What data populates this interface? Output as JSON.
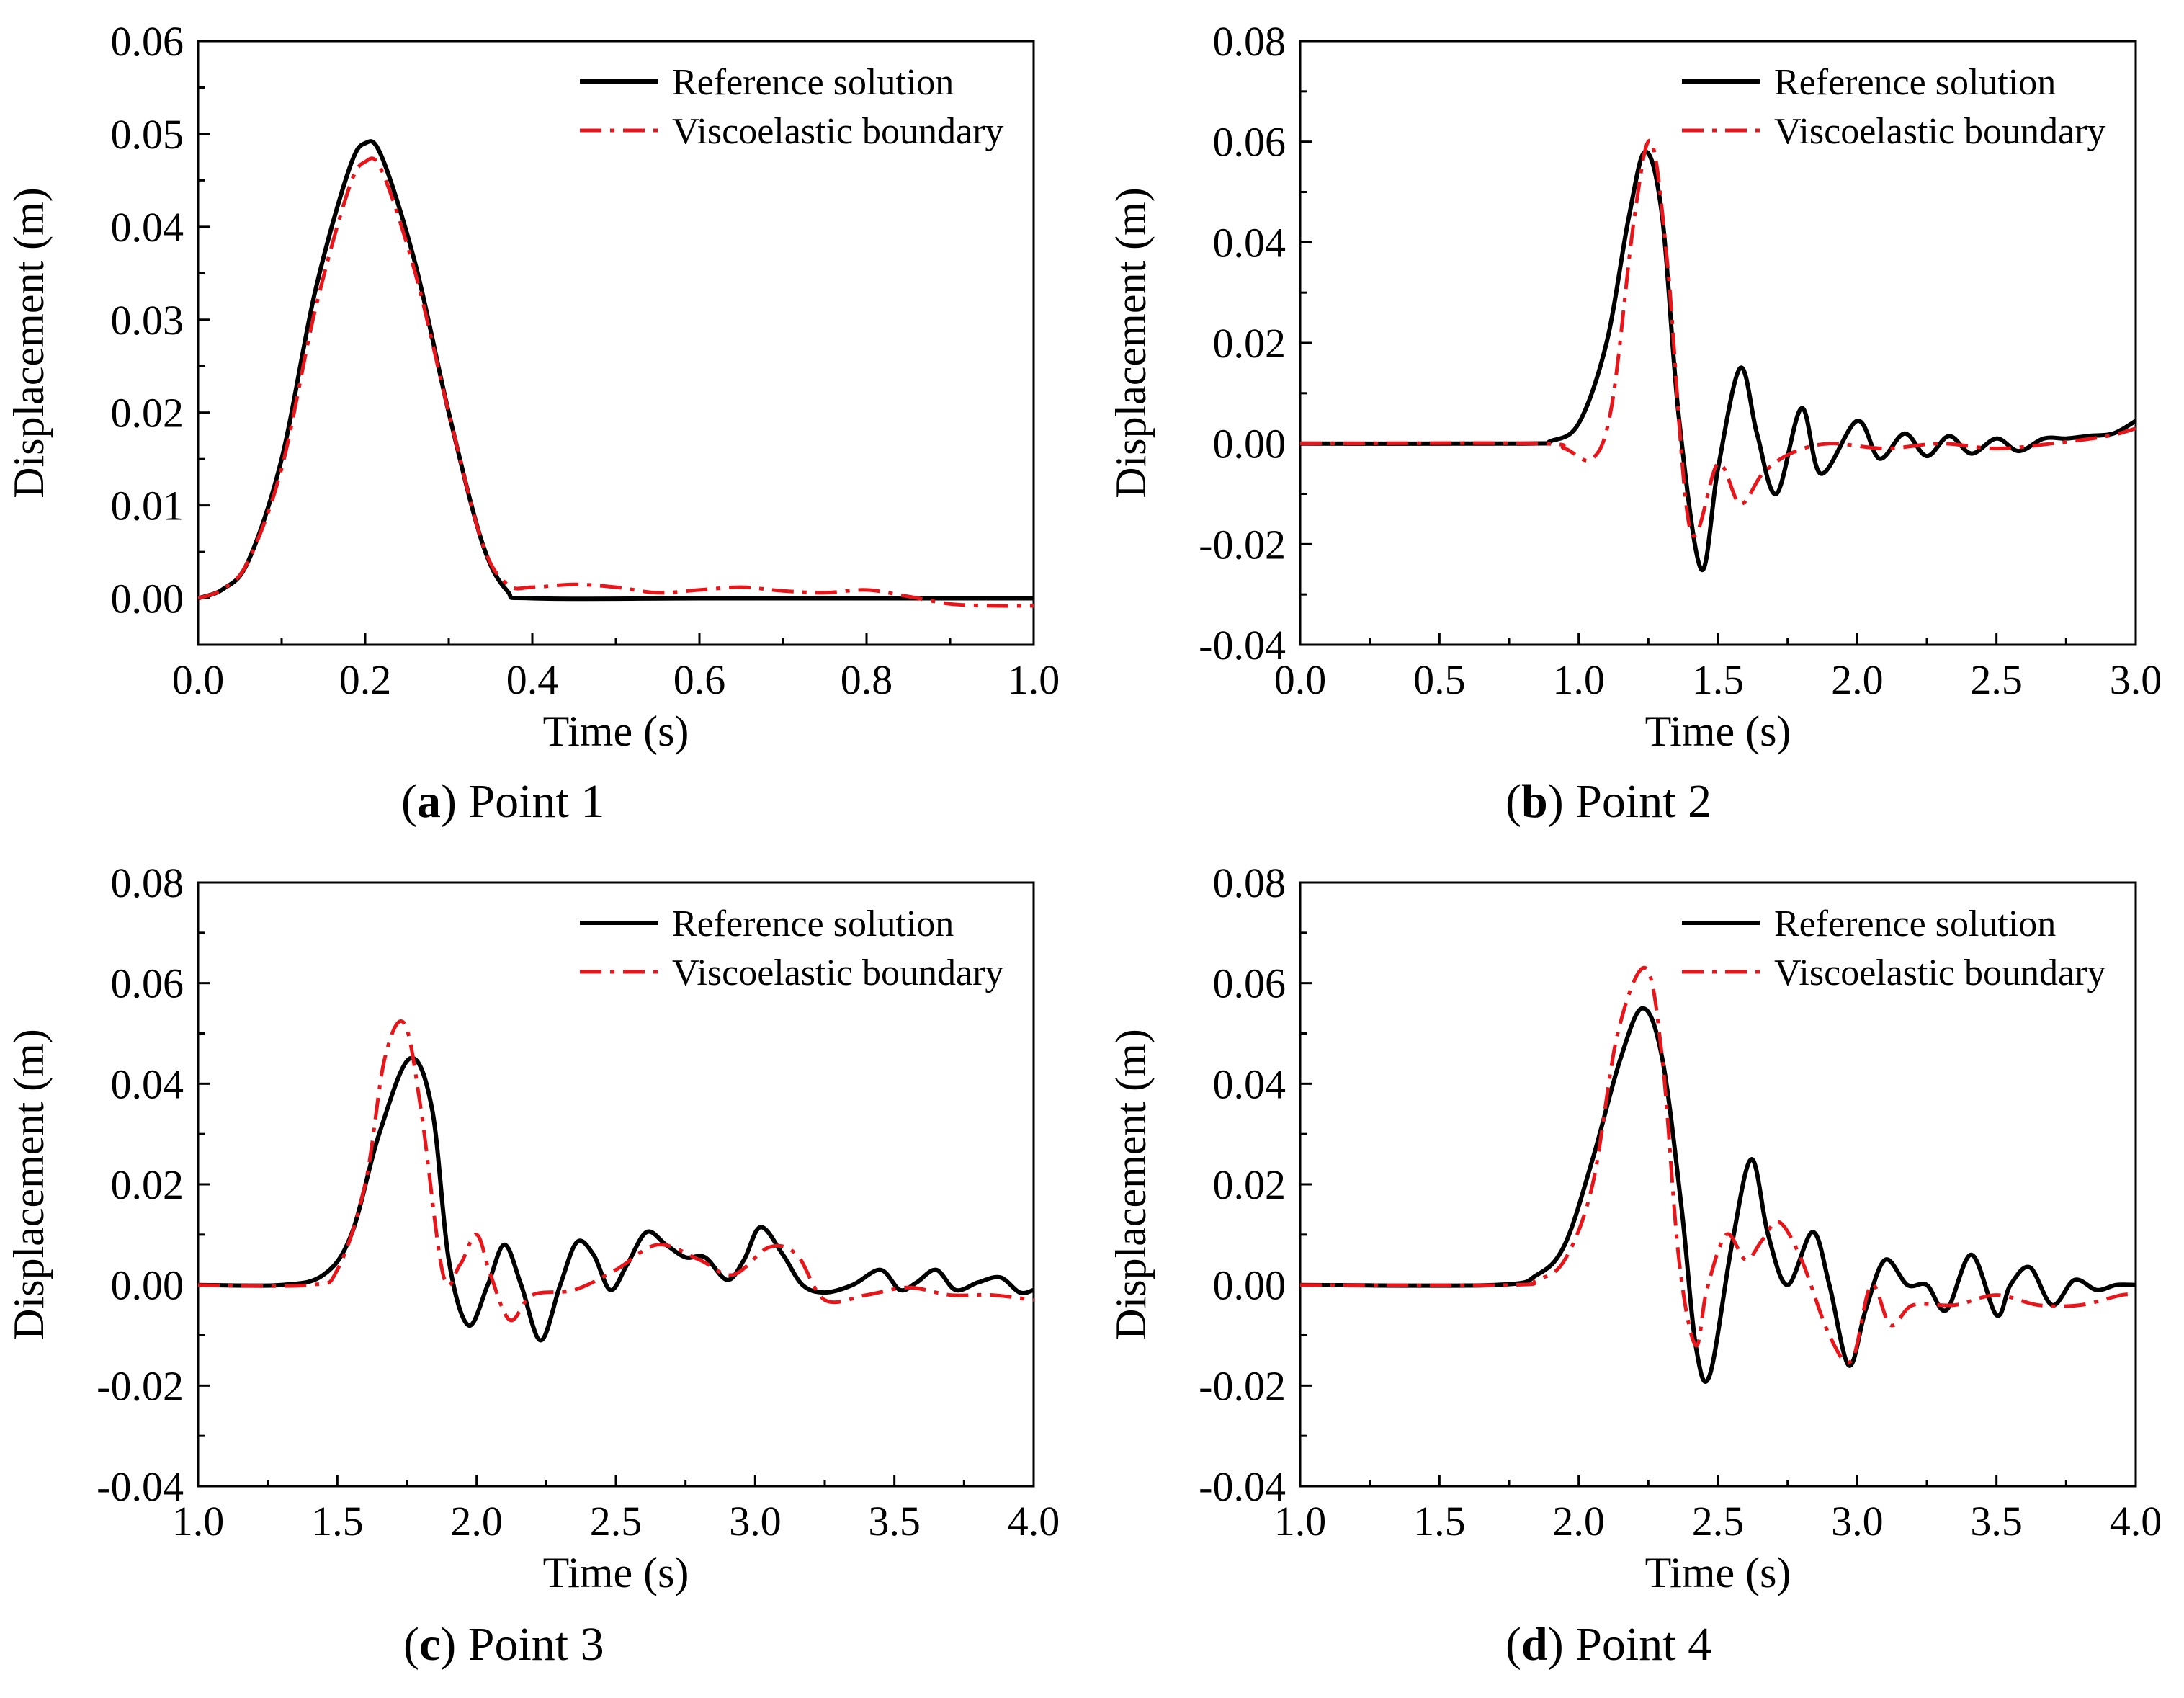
{
  "legend": {
    "reference_label": "Reference solution",
    "viscoelastic_label": "Viscoelastic boundary"
  },
  "colors": {
    "reference": "#000000",
    "viscoelastic": "#e8161b",
    "axis": "#000000"
  },
  "chart_data": [
    {
      "type": "line",
      "caption_letter": "a",
      "caption_text": " Point 1",
      "xlabel": "Time (s)",
      "ylabel": "Displacement  (m)",
      "xlim": [
        0.0,
        1.0
      ],
      "ylim": [
        -0.005,
        0.06
      ],
      "xticks": [
        "0.0",
        "0.2",
        "0.4",
        "0.6",
        "0.8",
        "1.0"
      ],
      "xtick_values": [
        0.0,
        0.2,
        0.4,
        0.6,
        0.8,
        1.0
      ],
      "yticks": [
        "0.00",
        "0.01",
        "0.02",
        "0.03",
        "0.04",
        "0.05",
        "0.06"
      ],
      "ytick_values": [
        0.0,
        0.01,
        0.02,
        0.03,
        0.04,
        0.05,
        0.06
      ],
      "series": [
        {
          "name": "Reference solution",
          "style": "solid",
          "x": [
            0.0,
            0.03,
            0.06,
            0.1,
            0.14,
            0.18,
            0.2,
            0.22,
            0.26,
            0.3,
            0.34,
            0.37,
            0.4,
            0.6,
            0.8,
            1.0
          ],
          "y": [
            0.0,
            0.001,
            0.004,
            0.015,
            0.033,
            0.046,
            0.049,
            0.0475,
            0.036,
            0.02,
            0.006,
            0.0008,
            0.0,
            0.0,
            0.0,
            0.0
          ]
        },
        {
          "name": "Viscoelastic boundary",
          "style": "dashdot",
          "x": [
            0.0,
            0.03,
            0.06,
            0.1,
            0.14,
            0.18,
            0.2,
            0.22,
            0.26,
            0.3,
            0.34,
            0.37,
            0.4,
            0.45,
            0.5,
            0.55,
            0.6,
            0.65,
            0.7,
            0.75,
            0.8,
            0.85,
            0.9,
            0.95,
            1.0
          ],
          "y": [
            0.0,
            0.001,
            0.004,
            0.014,
            0.031,
            0.044,
            0.047,
            0.046,
            0.035,
            0.02,
            0.006,
            0.0015,
            0.0012,
            0.0015,
            0.0012,
            0.0006,
            0.0009,
            0.0012,
            0.0008,
            0.0006,
            0.0009,
            0.0002,
            -0.0006,
            -0.0008,
            -0.0008
          ]
        }
      ]
    },
    {
      "type": "line",
      "caption_letter": "b",
      "caption_text": " Point 2",
      "xlabel": "Time (s)",
      "ylabel": "Displacement  (m)",
      "xlim": [
        0.0,
        3.0
      ],
      "ylim": [
        -0.04,
        0.08
      ],
      "xticks": [
        "0.0",
        "0.5",
        "1.0",
        "1.5",
        "2.0",
        "2.5",
        "3.0"
      ],
      "xtick_values": [
        0.0,
        0.5,
        1.0,
        1.5,
        2.0,
        2.5,
        3.0
      ],
      "yticks": [
        "-0.04",
        "-0.02",
        "0.00",
        "0.02",
        "0.04",
        "0.06",
        "0.08"
      ],
      "ytick_values": [
        -0.04,
        -0.02,
        0.0,
        0.02,
        0.04,
        0.06,
        0.08
      ],
      "series": [
        {
          "name": "Reference solution",
          "style": "solid",
          "x": [
            0.0,
            0.8,
            0.9,
            1.0,
            1.1,
            1.18,
            1.24,
            1.3,
            1.36,
            1.44,
            1.5,
            1.58,
            1.64,
            1.71,
            1.8,
            1.87,
            2.0,
            2.08,
            2.17,
            2.25,
            2.33,
            2.41,
            2.5,
            2.58,
            2.67,
            2.75,
            2.83,
            2.92,
            3.0
          ],
          "y": [
            0.0,
            0.0,
            0.0005,
            0.004,
            0.02,
            0.045,
            0.058,
            0.045,
            0.005,
            -0.025,
            -0.005,
            0.015,
            0.002,
            -0.01,
            0.007,
            -0.006,
            0.0045,
            -0.003,
            0.002,
            -0.0025,
            0.0015,
            -0.002,
            0.001,
            -0.0015,
            0.001,
            0.001,
            0.0015,
            0.002,
            0.0045
          ]
        },
        {
          "name": "Viscoelastic boundary",
          "style": "dashdot",
          "x": [
            0.0,
            0.85,
            0.95,
            1.05,
            1.12,
            1.2,
            1.26,
            1.32,
            1.4,
            1.5,
            1.58,
            1.66,
            1.76,
            1.9,
            2.1,
            2.3,
            2.5,
            2.7,
            2.9,
            3.0
          ],
          "y": [
            0.0,
            0.0,
            -0.001,
            -0.003,
            0.008,
            0.045,
            0.06,
            0.035,
            -0.017,
            -0.004,
            -0.012,
            -0.006,
            -0.002,
            0.0,
            -0.001,
            0.0,
            -0.001,
            0.0,
            0.0015,
            0.003
          ]
        }
      ]
    },
    {
      "type": "line",
      "caption_letter": "c",
      "caption_text": " Point 3",
      "xlabel": "Time (s)",
      "ylabel": "Displacement (m)",
      "xlim": [
        1.0,
        4.0
      ],
      "ylim": [
        -0.04,
        0.08
      ],
      "xticks": [
        "1.0",
        "1.5",
        "2.0",
        "2.5",
        "3.0",
        "3.5",
        "4.0"
      ],
      "xtick_values": [
        1.0,
        1.5,
        2.0,
        2.5,
        3.0,
        3.5,
        4.0
      ],
      "yticks": [
        "-0.04",
        "-0.02",
        "0.00",
        "0.02",
        "0.04",
        "0.06",
        "0.08"
      ],
      "ytick_values": [
        -0.04,
        -0.02,
        0.0,
        0.02,
        0.04,
        0.06,
        0.08
      ],
      "series": [
        {
          "name": "Reference solution",
          "style": "solid",
          "x": [
            1.0,
            1.3,
            1.45,
            1.55,
            1.65,
            1.76,
            1.84,
            1.9,
            1.97,
            2.04,
            2.1,
            2.16,
            2.23,
            2.3,
            2.36,
            2.42,
            2.48,
            2.54,
            2.61,
            2.68,
            2.75,
            2.82,
            2.9,
            2.96,
            3.02,
            3.1,
            3.17,
            3.25,
            3.35,
            3.45,
            3.52,
            3.58,
            3.65,
            3.72,
            3.8,
            3.88,
            3.95,
            4.0
          ],
          "y": [
            0.0,
            0.0,
            0.002,
            0.01,
            0.03,
            0.045,
            0.035,
            0.005,
            -0.008,
            0.0,
            0.008,
            0.0,
            -0.011,
            0.0,
            0.0085,
            0.006,
            -0.001,
            0.004,
            0.0105,
            0.008,
            0.0055,
            0.0055,
            0.001,
            0.005,
            0.0115,
            0.006,
            0.0,
            -0.0015,
            0.0,
            0.003,
            -0.001,
            0.0005,
            0.003,
            -0.001,
            0.0005,
            0.0015,
            -0.0015,
            -0.001
          ]
        },
        {
          "name": "Viscoelastic boundary",
          "style": "dashdot",
          "x": [
            1.0,
            1.4,
            1.5,
            1.6,
            1.67,
            1.74,
            1.8,
            1.88,
            1.94,
            2.0,
            2.05,
            2.12,
            2.2,
            2.35,
            2.5,
            2.65,
            2.8,
            2.92,
            3.05,
            3.15,
            3.25,
            3.4,
            3.55,
            3.7,
            3.85,
            4.0
          ],
          "y": [
            0.0,
            0.0,
            0.003,
            0.02,
            0.045,
            0.052,
            0.035,
            0.002,
            0.004,
            0.01,
            0.002,
            -0.007,
            -0.002,
            -0.001,
            0.003,
            0.008,
            0.005,
            0.002,
            0.0075,
            0.006,
            -0.003,
            -0.002,
            -0.0005,
            -0.002,
            -0.002,
            -0.003
          ]
        }
      ]
    },
    {
      "type": "line",
      "caption_letter": "d",
      "caption_text": " Point 4",
      "xlabel": "Time (s)",
      "ylabel": "Displacement (m)",
      "xlim": [
        1.0,
        4.0
      ],
      "ylim": [
        -0.04,
        0.08
      ],
      "xticks": [
        "1.0",
        "1.5",
        "2.0",
        "2.5",
        "3.0",
        "3.5",
        "4.0"
      ],
      "xtick_values": [
        1.0,
        1.5,
        2.0,
        2.5,
        3.0,
        3.5,
        4.0
      ],
      "yticks": [
        "-0.04",
        "-0.02",
        "0.00",
        "0.02",
        "0.04",
        "0.06",
        "0.08"
      ],
      "ytick_values": [
        -0.04,
        -0.02,
        0.0,
        0.02,
        0.04,
        0.06,
        0.08
      ],
      "series": [
        {
          "name": "Reference solution",
          "style": "solid",
          "x": [
            1.0,
            1.7,
            1.85,
            1.95,
            2.05,
            2.15,
            2.23,
            2.3,
            2.37,
            2.42,
            2.47,
            2.55,
            2.62,
            2.68,
            2.75,
            2.84,
            2.9,
            2.97,
            3.03,
            3.1,
            3.18,
            3.25,
            3.32,
            3.41,
            3.5,
            3.55,
            3.62,
            3.7,
            3.78,
            3.86,
            3.93,
            4.0
          ],
          "y": [
            0.0,
            0.0,
            0.002,
            0.008,
            0.025,
            0.045,
            0.055,
            0.045,
            0.015,
            -0.012,
            -0.018,
            0.008,
            0.025,
            0.01,
            0.0,
            0.0105,
            0.0,
            -0.016,
            -0.005,
            0.005,
            0.0,
            0.0,
            -0.005,
            0.006,
            -0.006,
            0.0,
            0.0035,
            -0.004,
            0.001,
            -0.001,
            0.0,
            0.0
          ]
        },
        {
          "name": "Viscoelastic boundary",
          "style": "dashdot",
          "x": [
            1.0,
            1.75,
            1.85,
            1.95,
            2.05,
            2.14,
            2.24,
            2.3,
            2.36,
            2.42,
            2.46,
            2.53,
            2.6,
            2.66,
            2.72,
            2.8,
            2.9,
            2.98,
            3.05,
            3.12,
            3.2,
            3.35,
            3.5,
            3.65,
            3.8,
            3.95,
            4.0
          ],
          "y": [
            0.0,
            0.0,
            0.001,
            0.005,
            0.02,
            0.05,
            0.063,
            0.045,
            0.005,
            -0.012,
            -0.001,
            0.01,
            0.005,
            0.009,
            0.0125,
            0.005,
            -0.01,
            -0.015,
            0.0,
            -0.008,
            -0.004,
            -0.004,
            -0.002,
            -0.004,
            -0.004,
            -0.002,
            -0.002
          ]
        }
      ]
    }
  ]
}
